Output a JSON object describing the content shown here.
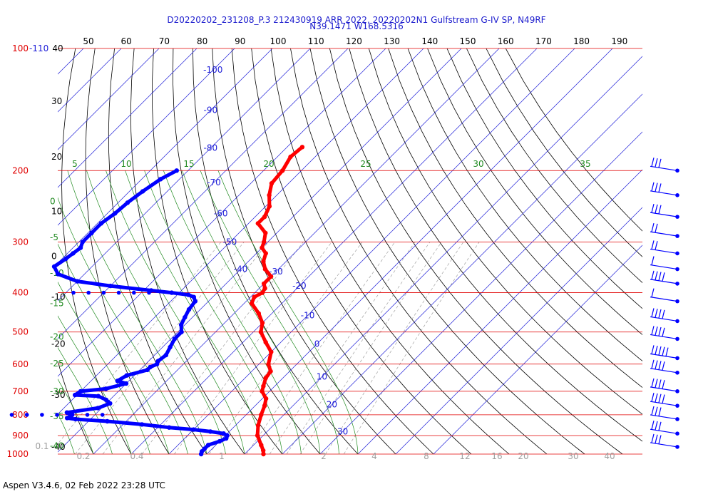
{
  "header": {
    "title_line1": "D20220202_231208_P.3 212430919 ARR 2022, 20220202N1 Gulfstream G-IV SP, N49RF",
    "title_line2": "N39.1471 W168.5316"
  },
  "footer": {
    "text": "Aspen V3.4.6, 02 Feb 2022  23:28 UTC"
  },
  "colors": {
    "pressure_lines": "#e00000",
    "isotherms": "#2020d8",
    "dry_adiabats": "#000000",
    "moist_adiabats": "#228b22",
    "mixing_ratio": "#a0a0a0",
    "temperature": "#ff0000",
    "dewpoint": "#0000ff",
    "wind_barbs": "#0000ff"
  },
  "chart_data": {
    "type": "line",
    "title": "D20220202_231208_P.3 212430919 ARR 2022, 20220202N1 Gulfstream G-IV SP, N49RF",
    "subtitle": "N39.1471 W168.5316",
    "pressure_labels": [
      {
        "text": "100",
        "p": 100
      },
      {
        "text": "200",
        "p": 200
      },
      {
        "text": "300",
        "p": 300
      },
      {
        "text": "400",
        "p": 400
      },
      {
        "text": "500",
        "p": 500
      },
      {
        "text": "600",
        "p": 600
      },
      {
        "text": "700",
        "p": 700
      },
      {
        "text": "800",
        "p": 800
      },
      {
        "text": "900",
        "p": 900
      },
      {
        "text": "1000",
        "p": 1000
      }
    ],
    "pressure_suffix": "-110",
    "top_axis_labels": [
      "50",
      "60",
      "70",
      "80",
      "90",
      "100",
      "110",
      "120",
      "130",
      "140",
      "150",
      "160",
      "170",
      "180",
      "190"
    ],
    "top_axis_first": "40",
    "left_axis_labels": [
      {
        "text": "40",
        "p": 100
      },
      {
        "text": "30",
        "p": 135
      },
      {
        "text": "20",
        "p": 185
      },
      {
        "text": "10",
        "p": 252
      },
      {
        "text": "0",
        "p": 325
      },
      {
        "text": "-10",
        "p": 410
      },
      {
        "text": "-20",
        "p": 535
      },
      {
        "text": "-30",
        "p": 715
      },
      {
        "text": "-40",
        "p": 960
      }
    ],
    "isotherm_labels": [
      {
        "text": "-100",
        "T": -100,
        "p": 113
      },
      {
        "text": "-90",
        "T": -90,
        "p": 142
      },
      {
        "text": "-80",
        "T": -80,
        "p": 176
      },
      {
        "text": "-70",
        "T": -70,
        "p": 214
      },
      {
        "text": "-60",
        "T": -60,
        "p": 255
      },
      {
        "text": "-50",
        "T": -50,
        "p": 300
      },
      {
        "text": "-40",
        "T": -40,
        "p": 350
      },
      {
        "text": "-30",
        "T": -30,
        "p": 355
      },
      {
        "text": "-20",
        "T": -20,
        "p": 385
      },
      {
        "text": "-10",
        "T": -10,
        "p": 455
      },
      {
        "text": "0",
        "T": 0,
        "p": 535
      },
      {
        "text": "10",
        "T": 10,
        "p": 645
      },
      {
        "text": "20",
        "T": 20,
        "p": 755
      },
      {
        "text": "30",
        "T": 30,
        "p": 880
      }
    ],
    "theta_e_labels": [
      {
        "text": "5",
        "p": 210
      },
      {
        "text": "10",
        "p": 210
      },
      {
        "text": "15",
        "p": 210
      },
      {
        "text": "20",
        "p": 210
      },
      {
        "text": "25",
        "p": 210
      },
      {
        "text": "30",
        "p": 210
      },
      {
        "text": "35",
        "p": 210
      }
    ],
    "green_left_labels": [
      {
        "text": "0",
        "p": 238
      },
      {
        "text": "-5",
        "p": 292
      },
      {
        "text": "-10",
        "p": 358
      },
      {
        "text": "-15",
        "p": 425
      },
      {
        "text": "-20",
        "p": 514
      },
      {
        "text": "-25",
        "p": 598
      },
      {
        "text": "-30",
        "p": 700
      },
      {
        "text": "-35",
        "p": 807
      },
      {
        "text": "-40",
        "p": 955
      }
    ],
    "mixing_ratio_labels": [
      "0.1",
      "0.2",
      "0.4",
      "1",
      "2",
      "4",
      "8",
      "12",
      "16",
      "20",
      "30",
      "40"
    ],
    "temperature": [
      [
        175,
        -56.0
      ],
      [
        185,
        -56.5
      ],
      [
        200,
        -55.0
      ],
      [
        215,
        -54.5
      ],
      [
        230,
        -52.0
      ],
      [
        245,
        -49.0
      ],
      [
        260,
        -47.5
      ],
      [
        270,
        -47.5
      ],
      [
        285,
        -43.0
      ],
      [
        300,
        -41.0
      ],
      [
        310,
        -40.0
      ],
      [
        320,
        -37.5
      ],
      [
        335,
        -36.0
      ],
      [
        350,
        -33.5
      ],
      [
        365,
        -30.0
      ],
      [
        380,
        -30.0
      ],
      [
        390,
        -28.5
      ],
      [
        400,
        -28.0
      ],
      [
        410,
        -29.0
      ],
      [
        425,
        -28.0
      ],
      [
        450,
        -23.5
      ],
      [
        475,
        -20.0
      ],
      [
        500,
        -18.0
      ],
      [
        530,
        -14.0
      ],
      [
        560,
        -10.0
      ],
      [
        600,
        -7.5
      ],
      [
        625,
        -5.0
      ],
      [
        650,
        -4.5
      ],
      [
        680,
        -3.0
      ],
      [
        700,
        -2.0
      ],
      [
        730,
        1.0
      ],
      [
        760,
        2.5
      ],
      [
        800,
        4.0
      ],
      [
        850,
        6.0
      ],
      [
        900,
        8.5
      ],
      [
        950,
        12.0
      ],
      [
        980,
        14.0
      ],
      [
        1000,
        15.0
      ]
    ],
    "dewpoint": [
      [
        200,
        -83.0
      ],
      [
        210,
        -85.0
      ],
      [
        225,
        -86.5
      ],
      [
        240,
        -87.5
      ],
      [
        255,
        -88.0
      ],
      [
        270,
        -89.0
      ],
      [
        285,
        -89.0
      ],
      [
        300,
        -89.0
      ],
      [
        310,
        -88.0
      ],
      [
        320,
        -88.5
      ],
      [
        330,
        -89.0
      ],
      [
        345,
        -90.0
      ],
      [
        360,
        -87.0
      ],
      [
        375,
        -80.0
      ],
      [
        385,
        -70.0
      ],
      [
        395,
        -58.0
      ],
      [
        400,
        -52.0
      ],
      [
        405,
        -47.0
      ],
      [
        410,
        -45.0
      ],
      [
        420,
        -43.5
      ],
      [
        440,
        -43.0
      ],
      [
        460,
        -42.0
      ],
      [
        480,
        -41.0
      ],
      [
        500,
        -39.0
      ],
      [
        520,
        -39.0
      ],
      [
        545,
        -38.0
      ],
      [
        570,
        -37.0
      ],
      [
        590,
        -37.5
      ],
      [
        600,
        -37.0
      ],
      [
        610,
        -38.0
      ],
      [
        620,
        -38.0
      ],
      [
        640,
        -42.0
      ],
      [
        660,
        -43.0
      ],
      [
        670,
        -40.0
      ],
      [
        690,
        -44.0
      ],
      [
        700,
        -50.0
      ],
      [
        715,
        -50.5
      ],
      [
        720,
        -44.0
      ],
      [
        735,
        -41.0
      ],
      [
        750,
        -39.0
      ],
      [
        770,
        -41.0
      ],
      [
        790,
        -48.0
      ],
      [
        800,
        -46.0
      ],
      [
        815,
        -46.5
      ],
      [
        820,
        -44.0
      ],
      [
        830,
        -35.0
      ],
      [
        845,
        -25.0
      ],
      [
        860,
        -17.0
      ],
      [
        870,
        -10.0
      ],
      [
        880,
        -5.0
      ],
      [
        890,
        -1.0
      ],
      [
        900,
        0.5
      ],
      [
        915,
        1.0
      ],
      [
        930,
        0.0
      ],
      [
        950,
        -2.0
      ],
      [
        970,
        -2.0
      ],
      [
        985,
        -2.0
      ],
      [
        1000,
        -1.5
      ]
    ],
    "dewpoint_dotted": [
      [
        400,
        -78.0
      ],
      [
        400,
        -74.0
      ],
      [
        400,
        -70.0
      ],
      [
        400,
        -66.0
      ],
      [
        400,
        -62.0
      ],
      [
        400,
        -58.0
      ],
      [
        800,
        -62.0
      ],
      [
        800,
        -58.0
      ],
      [
        800,
        -54.0
      ],
      [
        800,
        -50.0
      ],
      [
        800,
        -46.0
      ],
      [
        800,
        -42.0
      ],
      [
        800,
        -38.0
      ]
    ],
    "wind_barbs": [
      {
        "p": 200,
        "barbs": 3
      },
      {
        "p": 230,
        "barbs": 3
      },
      {
        "p": 260,
        "barbs": 3
      },
      {
        "p": 290,
        "barbs": 2
      },
      {
        "p": 320,
        "barbs": 2
      },
      {
        "p": 350,
        "barbs": 1
      },
      {
        "p": 380,
        "barbs": 4
      },
      {
        "p": 420,
        "barbs": 1
      },
      {
        "p": 470,
        "barbs": 4
      },
      {
        "p": 520,
        "barbs": 4
      },
      {
        "p": 580,
        "barbs": 5
      },
      {
        "p": 630,
        "barbs": 4
      },
      {
        "p": 700,
        "barbs": 4
      },
      {
        "p": 760,
        "barbs": 4
      },
      {
        "p": 820,
        "barbs": 3
      },
      {
        "p": 890,
        "barbs": 3
      },
      {
        "p": 960,
        "barbs": 3
      }
    ]
  }
}
